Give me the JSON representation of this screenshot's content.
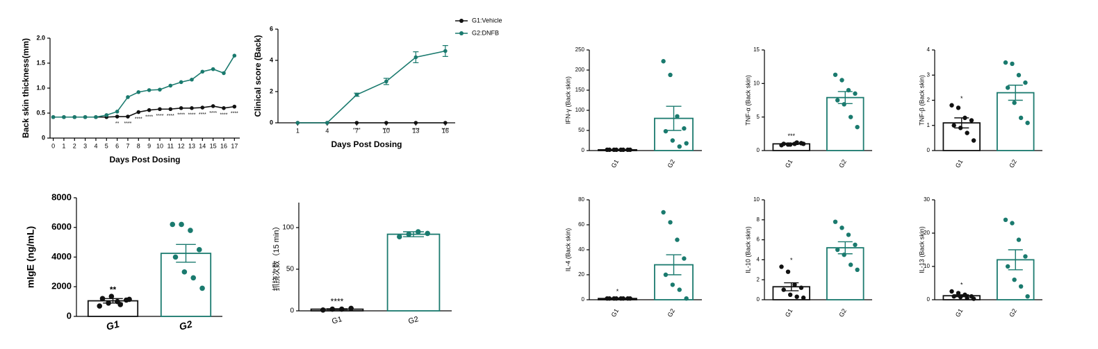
{
  "chart_data": [
    {
      "type": "line",
      "y_label": "Back skin thickness(mm)",
      "x_label": "Days Post Dosing",
      "x": [
        0,
        1,
        2,
        3,
        4,
        5,
        6,
        7,
        8,
        9,
        10,
        11,
        12,
        13,
        14,
        15,
        16,
        17
      ],
      "xlim": [
        -0.3,
        17.5
      ],
      "xticks": [
        0,
        1,
        2,
        3,
        4,
        5,
        6,
        7,
        8,
        9,
        10,
        11,
        12,
        13,
        14,
        15,
        16,
        17
      ],
      "ylim": [
        0,
        2
      ],
      "yticks": [
        0,
        0.5,
        {
          "value": 1,
          "label": "1.0"
        },
        1.5,
        {
          "value": 2,
          "label": "2.0"
        }
      ],
      "annotations": [
        null,
        null,
        null,
        null,
        null,
        null,
        "**",
        "****",
        "****",
        "****",
        "****",
        "****",
        "****",
        "****",
        "****",
        "****",
        "****",
        "****"
      ],
      "series": [
        {
          "name": "G1:Vehicle",
          "color": "#111111",
          "values": [
            0.42,
            0.42,
            0.42,
            0.42,
            0.42,
            0.42,
            0.43,
            0.43,
            0.52,
            0.56,
            0.58,
            0.58,
            0.6,
            0.6,
            0.61,
            0.64,
            0.6,
            0.63
          ]
        },
        {
          "name": "G2:DNFB",
          "color": "#1a7a6e",
          "values": [
            0.42,
            0.42,
            0.42,
            0.42,
            0.42,
            0.46,
            0.53,
            0.82,
            0.92,
            0.96,
            0.97,
            1.05,
            1.12,
            1.17,
            1.33,
            1.38,
            1.3,
            1.65
          ]
        }
      ]
    },
    {
      "type": "line",
      "y_label": "Clinical score (Back)",
      "x_label": "Days Post Dosing",
      "x": [
        1,
        4,
        7,
        10,
        13,
        16
      ],
      "xlim": [
        -1,
        17
      ],
      "xticks": [
        1,
        4,
        7,
        10,
        13,
        16
      ],
      "ylim": [
        0,
        6
      ],
      "yticks": [
        0,
        2,
        4,
        6
      ],
      "legend": "upper right",
      "annotations": [
        null,
        null,
        "****",
        "****",
        "****",
        "****"
      ],
      "series": [
        {
          "name": "G1:Vehicle",
          "color": "#111111",
          "values": [
            0,
            0,
            0,
            0,
            0,
            0
          ]
        },
        {
          "name": "G2:DNFB",
          "color": "#1a7a6e",
          "values": [
            0,
            0,
            1.8,
            2.65,
            4.2,
            4.6
          ],
          "errors": [
            0,
            0,
            0.1,
            0.2,
            0.35,
            0.35
          ]
        }
      ]
    },
    {
      "type": "bar",
      "y_label": "mIgE (ng/mL)",
      "categories": [
        "G1",
        "G2"
      ],
      "colors": [
        "#111111",
        "#1a7a6e"
      ],
      "values": [
        1050,
        4250
      ],
      "errors": [
        150,
        600
      ],
      "annotations": [
        "**",
        null
      ],
      "points": [
        [
          700,
          900,
          1000,
          1100,
          1200,
          1350,
          800,
          1150
        ],
        [
          6200,
          6200,
          5800,
          4500,
          4000,
          3000,
          2600,
          1900
        ]
      ],
      "ylim": [
        0,
        8000
      ],
      "yticks": [
        0,
        2000,
        4000,
        6000,
        8000
      ]
    },
    {
      "type": "bar",
      "y_label": "抓挠次数（15 min）",
      "categories": [
        "G1",
        "G2"
      ],
      "colors": [
        "#111111",
        "#1a7a6e"
      ],
      "values": [
        2,
        92
      ],
      "errors": [
        0.5,
        3
      ],
      "annotations": [
        "****",
        null
      ],
      "points": [
        [
          1,
          2,
          2,
          3
        ],
        [
          89,
          92,
          95,
          93
        ]
      ],
      "ylim": [
        0,
        130
      ],
      "yticks": [
        0,
        50,
        100
      ]
    },
    {
      "type": "bar",
      "y_label": "IFN-γ (Back skin)",
      "categories": [
        "G1",
        "G2"
      ],
      "colors": [
        "#111111",
        "#1a7a6e"
      ],
      "values": [
        2,
        80
      ],
      "errors": [
        0.5,
        30
      ],
      "annotations": [
        null,
        null
      ],
      "points": [
        [
          2,
          2,
          2,
          2,
          2,
          2,
          2,
          2
        ],
        [
          222,
          188,
          85,
          55,
          48,
          25,
          10,
          18
        ]
      ],
      "ylim": [
        0,
        250
      ],
      "yticks": [
        0,
        50,
        100,
        150,
        200,
        250
      ]
    },
    {
      "type": "bar",
      "y_label": "TNF-α (Back skin)",
      "categories": [
        "G1",
        "G2"
      ],
      "colors": [
        "#111111",
        "#1a7a6e"
      ],
      "values": [
        1.0,
        7.9
      ],
      "errors": [
        0.1,
        0.9
      ],
      "annotations": [
        "***",
        null
      ],
      "points": [
        [
          0.8,
          0.9,
          1.0,
          1.1,
          1.0,
          0.9,
          1.2,
          1.0
        ],
        [
          11.3,
          10.5,
          9.0,
          8.5,
          7.5,
          6.9,
          5.0,
          3.5
        ]
      ],
      "ylim": [
        0,
        15
      ],
      "yticks": [
        0,
        5,
        10,
        15
      ]
    },
    {
      "type": "bar",
      "y_label": "TNF-β (Back skin)",
      "categories": [
        "G1",
        "G2"
      ],
      "colors": [
        "#111111",
        "#1a7a6e"
      ],
      "values": [
        1.1,
        2.3
      ],
      "errors": [
        0.2,
        0.3
      ],
      "annotations": [
        "*",
        null
      ],
      "points": [
        [
          1.8,
          1.7,
          1.3,
          1.2,
          1.0,
          0.9,
          0.7,
          0.4
        ],
        [
          3.5,
          3.45,
          3.0,
          2.7,
          2.5,
          1.9,
          1.3,
          1.1
        ]
      ],
      "ylim": [
        0,
        4
      ],
      "yticks": [
        0,
        1,
        2,
        3,
        4
      ]
    },
    {
      "type": "bar",
      "y_label": "IL-4 (Back skin)",
      "categories": [
        "G1",
        "G2"
      ],
      "colors": [
        "#111111",
        "#1a7a6e"
      ],
      "values": [
        1,
        28
      ],
      "errors": [
        0.3,
        8
      ],
      "annotations": [
        "*",
        null
      ],
      "points": [
        [
          1,
          1,
          1,
          1,
          1,
          1,
          1,
          1
        ],
        [
          70,
          62,
          48,
          33,
          20,
          12,
          8,
          1
        ]
      ],
      "ylim": [
        0,
        80
      ],
      "yticks": [
        0,
        20,
        40,
        60,
        80
      ]
    },
    {
      "type": "bar",
      "y_label": "IL-10 (Back skin)",
      "categories": [
        "G1",
        "G2"
      ],
      "colors": [
        "#111111",
        "#1a7a6e"
      ],
      "values": [
        1.3,
        5.2
      ],
      "errors": [
        0.4,
        0.6
      ],
      "annotations": [
        "*",
        null
      ],
      "points": [
        [
          3.3,
          2.8,
          1.5,
          1.2,
          1.0,
          0.5,
          0.3,
          0.2
        ],
        [
          7.8,
          7.2,
          6.5,
          5.5,
          5.0,
          4.5,
          3.5,
          3.0
        ]
      ],
      "ylim": [
        0,
        10
      ],
      "yticks": [
        0,
        2,
        4,
        6,
        8,
        10
      ]
    },
    {
      "type": "bar",
      "y_label": "IL-13 (Back skin)",
      "categories": [
        "G1",
        "G2"
      ],
      "colors": [
        "#111111",
        "#1a7a6e"
      ],
      "values": [
        1.2,
        12
      ],
      "errors": [
        0.3,
        3
      ],
      "annotations": [
        "*",
        null
      ],
      "points": [
        [
          2.5,
          2,
          1.5,
          1,
          1,
          0.8,
          0.5,
          0.3
        ],
        [
          24,
          23,
          18,
          13,
          10,
          6,
          4,
          1
        ]
      ],
      "ylim": [
        0,
        30
      ],
      "yticks": [
        0,
        10,
        20,
        30
      ]
    }
  ]
}
